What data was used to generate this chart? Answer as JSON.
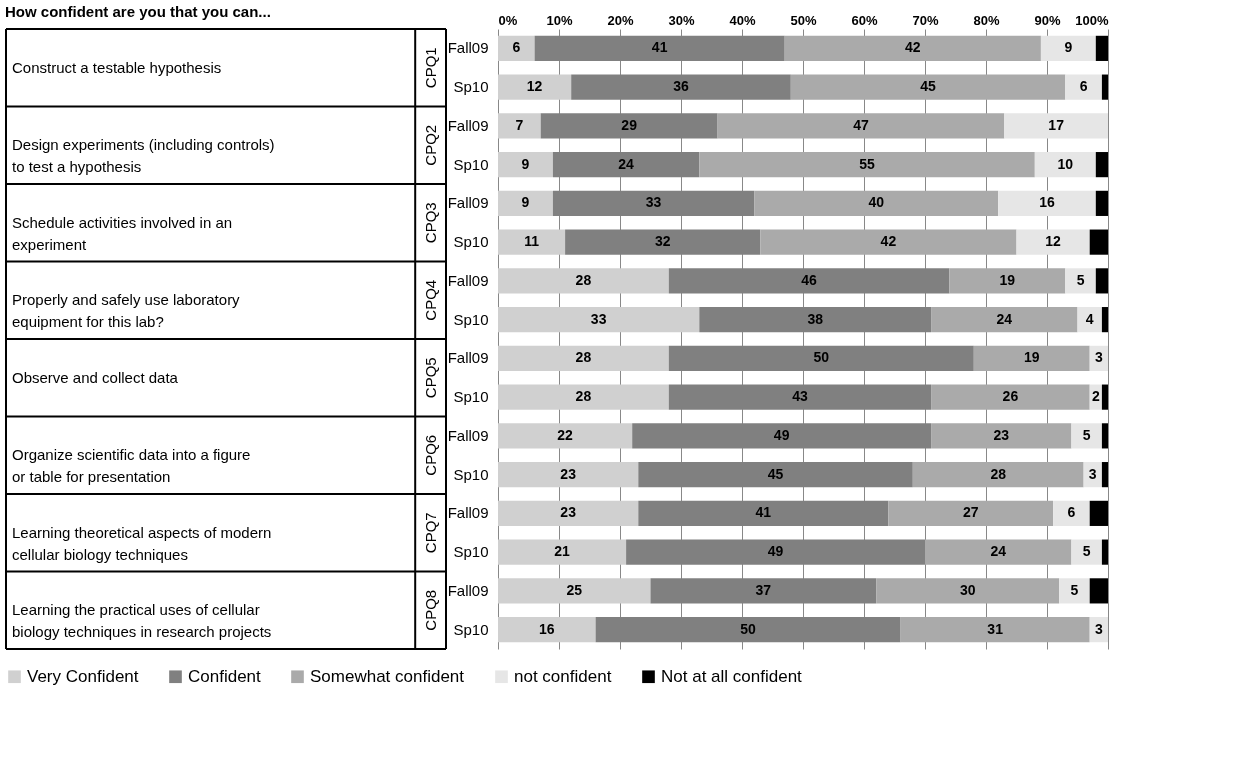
{
  "chart_data": {
    "type": "bar",
    "orientation": "horizontal",
    "stacked": true,
    "title": "How confident are you that you can...",
    "categories": [
      "Fall09",
      "Sp10",
      "Fall09",
      "Sp10",
      "Fall09",
      "Sp10",
      "Fall09",
      "Sp10",
      "Fall09",
      "Sp10",
      "Fall09",
      "Sp10",
      "Fall09",
      "Sp10",
      "Fall09",
      "Sp10"
    ],
    "series": [
      {
        "name": "Very Confident",
        "color": "#d0d0d0",
        "values": [
          6,
          12,
          7,
          9,
          9,
          11,
          28,
          33,
          28,
          28,
          22,
          23,
          23,
          21,
          25,
          16
        ],
        "value_labels": [
          "6",
          "12",
          "7",
          "9",
          "9",
          "11",
          "28",
          "33",
          "28",
          "28",
          "22",
          "23",
          "23",
          "21",
          "25",
          "16"
        ]
      },
      {
        "name": "Confident",
        "color": "#808080",
        "values": [
          41,
          36,
          29,
          24,
          33,
          32,
          46,
          38,
          50,
          43,
          49,
          45,
          41,
          49,
          37,
          50
        ],
        "value_labels": [
          "41",
          "36",
          "29",
          "24",
          "33",
          "32",
          "46",
          "38",
          "50",
          "43",
          "49",
          "45",
          "41",
          "49",
          "37",
          "50"
        ]
      },
      {
        "name": "Somewhat confident",
        "color": "#aaaaaa",
        "values": [
          42,
          45,
          47,
          55,
          40,
          42,
          19,
          24,
          19,
          26,
          23,
          28,
          27,
          24,
          30,
          31
        ],
        "value_labels": [
          "42",
          "45",
          "47",
          "55",
          "40",
          "42",
          "19",
          "24",
          "19",
          "26",
          "23",
          "28",
          "27",
          "24",
          "30",
          "31"
        ]
      },
      {
        "name": "not confident",
        "color": "#e6e6e6",
        "values": [
          9,
          6,
          17,
          10,
          16,
          12,
          5,
          4,
          3,
          2,
          5,
          3,
          6,
          5,
          5,
          3
        ],
        "value_labels": [
          "9",
          "6",
          "17",
          "10",
          "16",
          "12",
          "5",
          "4",
          "3",
          "2",
          "5",
          "3",
          "6",
          "5",
          "5",
          "3"
        ]
      },
      {
        "name": "Not at all confident",
        "color": "#000000",
        "values": [
          2,
          1,
          0,
          2,
          2,
          3,
          2,
          1,
          0,
          1,
          1,
          1,
          3,
          1,
          3,
          0
        ]
      }
    ],
    "xlim": [
      0,
      100
    ],
    "xticks": [
      {
        "value": 0,
        "label": "0%"
      },
      {
        "value": 10,
        "label": "10%"
      },
      {
        "value": 20,
        "label": "20%"
      },
      {
        "value": 30,
        "label": "30%"
      },
      {
        "value": 40,
        "label": "40%"
      },
      {
        "value": 50,
        "label": "50%"
      },
      {
        "value": 60,
        "label": "60%"
      },
      {
        "value": 70,
        "label": "70%"
      },
      {
        "value": 80,
        "label": "80%"
      },
      {
        "value": 90,
        "label": "90%"
      },
      {
        "value": 100,
        "label": "100%"
      }
    ],
    "grid": "x",
    "legend": "bottom",
    "annotations": [
      "Construct a testable hypothesis",
      "Design experiments (including controls) to test a hypothesis",
      "Schedule activities involved in an experiment",
      "Properly and safely use laboratory equipment for this lab?",
      "Observe and collect data",
      "Organize scientific data into a figure or table for presentation",
      "Learning theoretical aspects of modern cellular biology techniques",
      "Learning the practical uses of cellular biology techniques in research projects",
      "CPQ1",
      "CPQ2",
      "CPQ3",
      "CPQ4",
      "CPQ5",
      "CPQ6",
      "CPQ7",
      "CPQ8"
    ]
  }
}
